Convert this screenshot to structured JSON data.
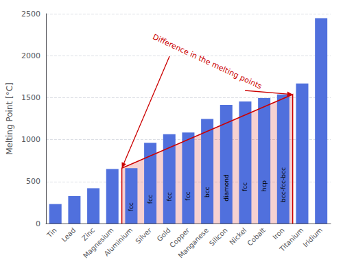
{
  "chart_data": {
    "type": "bar",
    "categories": [
      "Tin",
      "Lead",
      "Zinc",
      "Magnesium",
      "Aluminium",
      "Silver",
      "Gold",
      "Copper",
      "Manganese",
      "Silicon",
      "Nickel",
      "Cobalt",
      "Iron",
      "Titanium",
      "Iridium"
    ],
    "values": [
      232,
      327,
      420,
      650,
      660,
      962,
      1064,
      1085,
      1246,
      1414,
      1455,
      1495,
      1538,
      1668,
      2446
    ],
    "bar_labels": [
      null,
      null,
      null,
      null,
      "fcc",
      "fcc",
      "fcc",
      "fcc",
      "bcc",
      "diamond",
      "fcc",
      "hcp",
      "bcc-fcc-bcc",
      null,
      null
    ],
    "ylabel": "Melting Point [°C]",
    "ylim": [
      0,
      2500
    ],
    "yticks": [
      0,
      500,
      1000,
      1500,
      2000,
      2500
    ],
    "grid": true,
    "annotation": {
      "text": "Difference in the melting points",
      "color": "#cc0000"
    }
  }
}
